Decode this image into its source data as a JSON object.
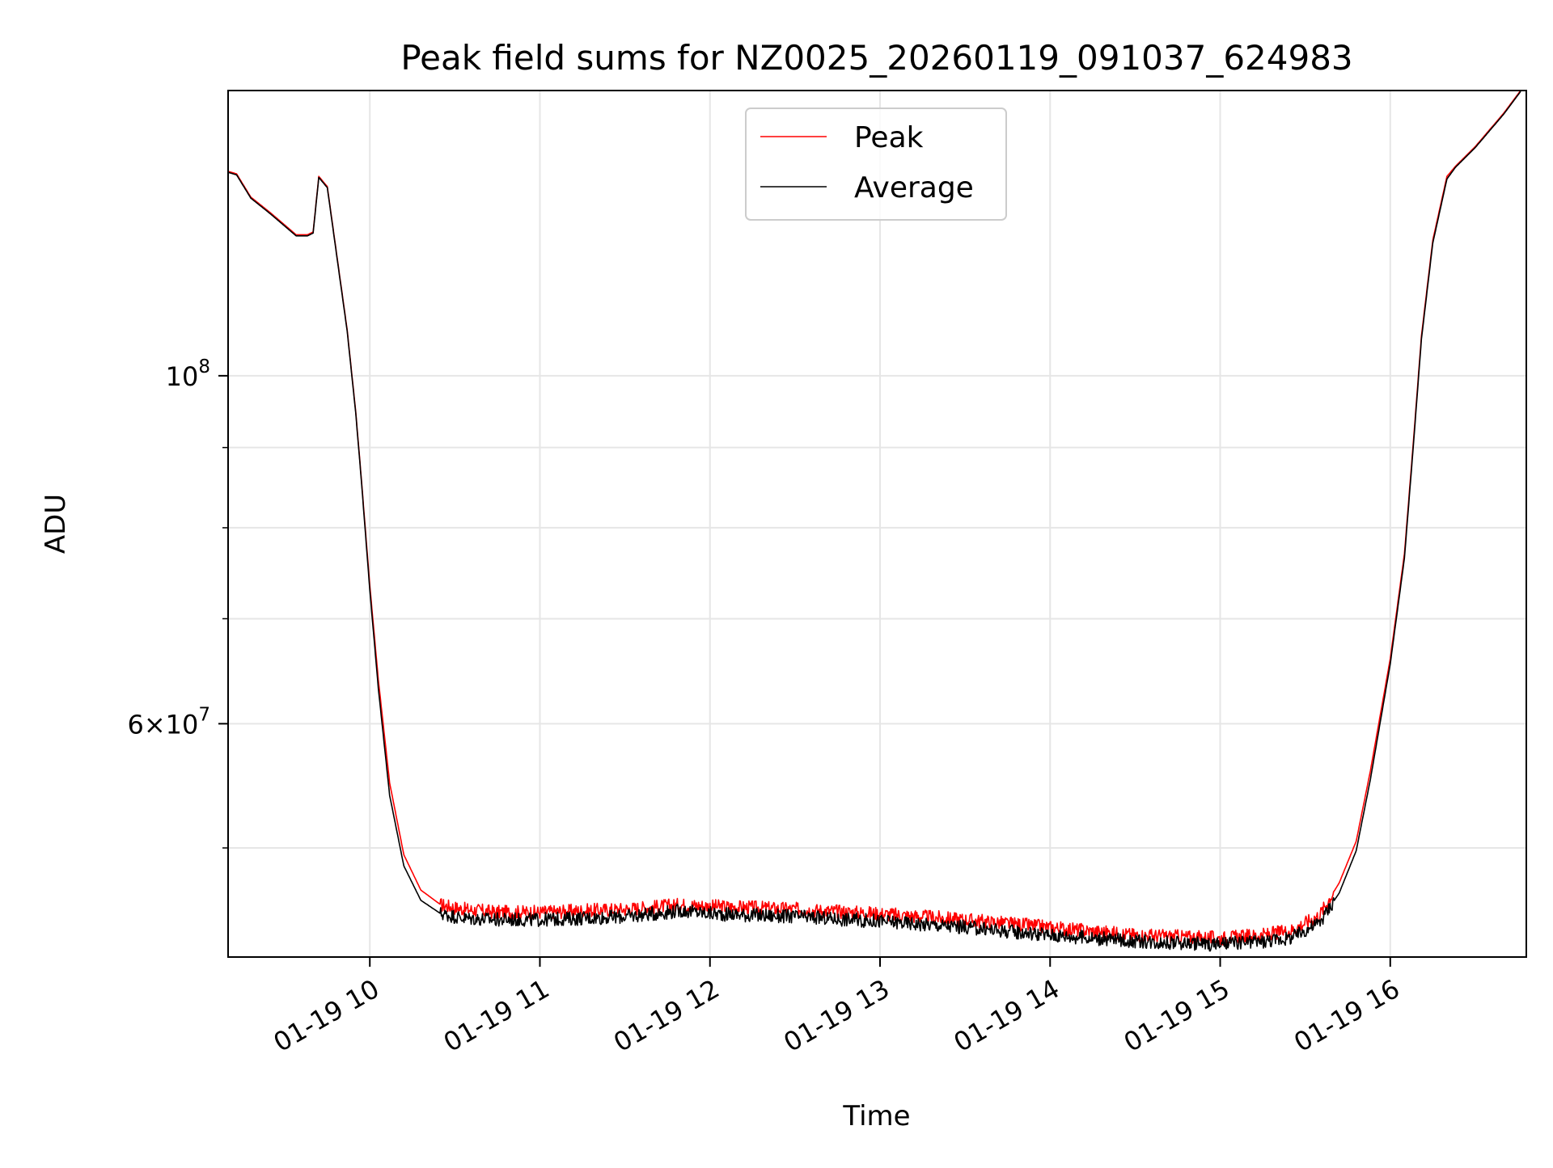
{
  "chart_data": {
    "type": "line",
    "title": "Peak field sums for NZ0025_20260119_091037_624983",
    "xlabel": "Time",
    "ylabel": "ADU",
    "yscale": "log",
    "xlim": [
      "2026-01-19 09:10",
      "2026-01-19 16:48"
    ],
    "ylim": [
      42600000,
      152000000
    ],
    "grid": true,
    "legend_position": "top-center",
    "x_ticks": [
      {
        "value": "2026-01-19 10:00",
        "label": "01-19 10"
      },
      {
        "value": "2026-01-19 11:00",
        "label": "01-19 11"
      },
      {
        "value": "2026-01-19 12:00",
        "label": "01-19 12"
      },
      {
        "value": "2026-01-19 13:00",
        "label": "01-19 13"
      },
      {
        "value": "2026-01-19 14:00",
        "label": "01-19 14"
      },
      {
        "value": "2026-01-19 15:00",
        "label": "01-19 15"
      },
      {
        "value": "2026-01-19 16:00",
        "label": "01-19 16"
      }
    ],
    "y_major_ticks": [
      {
        "value": 100000000,
        "base": "10",
        "exp": "8"
      },
      {
        "value": 60000000,
        "base": "6×10",
        "exp": "7"
      }
    ],
    "y_minor_ticks": [
      50000000,
      70000000,
      80000000,
      90000000
    ],
    "series": [
      {
        "name": "Peak",
        "color": "#ff0000",
        "x": [
          "2026-01-19 09:10",
          "2026-01-19 09:13",
          "2026-01-19 09:18",
          "2026-01-19 09:25",
          "2026-01-19 09:34",
          "2026-01-19 09:38",
          "2026-01-19 09:40",
          "2026-01-19 09:42",
          "2026-01-19 09:45",
          "2026-01-19 09:52",
          "2026-01-19 09:55",
          "2026-01-19 09:57",
          "2026-01-19 10:00",
          "2026-01-19 10:03",
          "2026-01-19 10:07",
          "2026-01-19 10:12",
          "2026-01-19 10:18",
          "2026-01-19 10:25",
          "2026-01-19 10:33",
          "2026-01-19 10:45",
          "2026-01-19 11:00",
          "2026-01-19 11:30",
          "2026-01-19 11:50",
          "2026-01-19 12:00",
          "2026-01-19 12:30",
          "2026-01-19 13:00",
          "2026-01-19 13:30",
          "2026-01-19 14:00",
          "2026-01-19 14:30",
          "2026-01-19 15:00",
          "2026-01-19 15:15",
          "2026-01-19 15:25",
          "2026-01-19 15:35",
          "2026-01-19 15:42",
          "2026-01-19 15:48",
          "2026-01-19 15:53",
          "2026-01-19 16:00",
          "2026-01-19 16:05",
          "2026-01-19 16:08",
          "2026-01-19 16:11",
          "2026-01-19 16:15",
          "2026-01-19 16:20",
          "2026-01-19 16:23",
          "2026-01-19 16:30",
          "2026-01-19 16:40",
          "2026-01-19 16:46"
        ],
        "values": [
          135000000,
          134500000,
          130000000,
          127000000,
          123000000,
          123000000,
          123500000,
          134000000,
          132000000,
          107000000,
          95000000,
          86000000,
          73500000,
          64000000,
          55000000,
          49500000,
          47000000,
          46000000,
          45700000,
          45500000,
          45500000,
          45700000,
          46000000,
          45900000,
          45700000,
          45400000,
          45000000,
          44500000,
          44000000,
          43800000,
          44000000,
          44300000,
          45300000,
          47500000,
          50500000,
          56000000,
          66000000,
          77000000,
          90000000,
          106000000,
          122000000,
          134000000,
          136000000,
          140000000,
          147000000,
          152000000
        ]
      },
      {
        "name": "Average",
        "color": "#000000",
        "x": [
          "2026-01-19 09:10",
          "2026-01-19 09:13",
          "2026-01-19 09:18",
          "2026-01-19 09:25",
          "2026-01-19 09:34",
          "2026-01-19 09:38",
          "2026-01-19 09:40",
          "2026-01-19 09:42",
          "2026-01-19 09:45",
          "2026-01-19 09:52",
          "2026-01-19 09:55",
          "2026-01-19 09:57",
          "2026-01-19 10:00",
          "2026-01-19 10:03",
          "2026-01-19 10:07",
          "2026-01-19 10:12",
          "2026-01-19 10:18",
          "2026-01-19 10:25",
          "2026-01-19 10:33",
          "2026-01-19 10:45",
          "2026-01-19 11:00",
          "2026-01-19 11:30",
          "2026-01-19 11:50",
          "2026-01-19 12:00",
          "2026-01-19 12:30",
          "2026-01-19 13:00",
          "2026-01-19 13:30",
          "2026-01-19 14:00",
          "2026-01-19 14:30",
          "2026-01-19 15:00",
          "2026-01-19 15:15",
          "2026-01-19 15:25",
          "2026-01-19 15:35",
          "2026-01-19 15:42",
          "2026-01-19 15:48",
          "2026-01-19 15:53",
          "2026-01-19 16:00",
          "2026-01-19 16:05",
          "2026-01-19 16:08",
          "2026-01-19 16:11",
          "2026-01-19 16:15",
          "2026-01-19 16:20",
          "2026-01-19 16:23",
          "2026-01-19 16:30",
          "2026-01-19 16:40",
          "2026-01-19 16:46"
        ],
        "values": [
          134800000,
          134300000,
          129800000,
          126800000,
          122800000,
          122800000,
          123300000,
          133800000,
          131800000,
          106800000,
          94800000,
          85800000,
          73000000,
          63200000,
          54000000,
          48700000,
          46300000,
          45400000,
          45100000,
          45000000,
          45000000,
          45200000,
          45600000,
          45400000,
          45200000,
          44900000,
          44500000,
          44000000,
          43600000,
          43400000,
          43600000,
          43800000,
          44800000,
          46800000,
          49800000,
          55300000,
          65500000,
          76500000,
          89500000,
          105500000,
          121500000,
          133500000,
          135800000,
          139800000,
          146800000,
          151800000
        ]
      }
    ]
  }
}
